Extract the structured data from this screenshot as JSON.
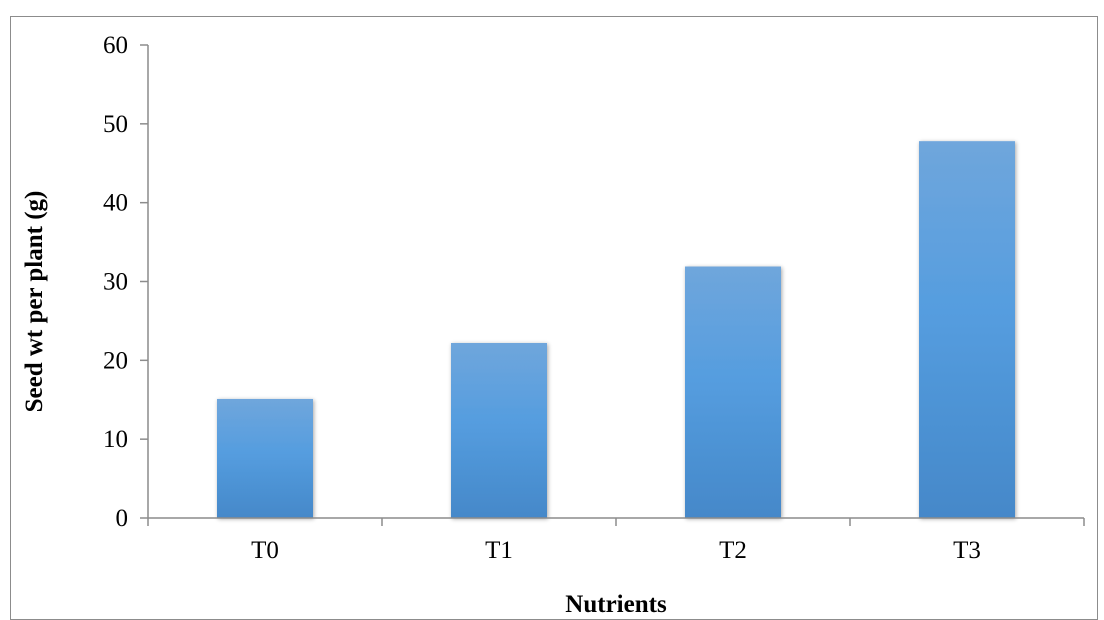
{
  "chart_data": {
    "type": "bar",
    "title": "",
    "xlabel": "Nutrients",
    "ylabel": "Seed wt per plant (g)",
    "categories": [
      "T0",
      "T1",
      "T2",
      "T3"
    ],
    "values": [
      15.1,
      22.2,
      31.9,
      47.8
    ],
    "ylim": [
      0,
      60
    ],
    "yticks": [
      0,
      10,
      20,
      30,
      40,
      50,
      60
    ],
    "grid": false,
    "legend": "none",
    "colors": {
      "bar_top": "#6fa6dc",
      "bar_mid": "#559ddf",
      "bar_bottom": "#4588c9",
      "axis": "#8c8c8c",
      "frame": "#8c8c8c"
    }
  }
}
